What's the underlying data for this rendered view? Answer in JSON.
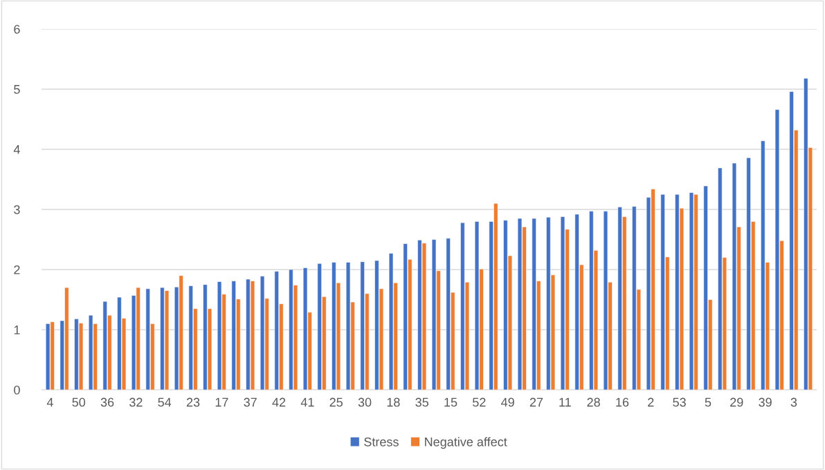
{
  "chart_data": {
    "type": "bar",
    "categories": [
      "4",
      null,
      "50",
      null,
      "36",
      null,
      "32",
      null,
      "54",
      null,
      "23",
      null,
      "17",
      null,
      "37",
      null,
      "42",
      null,
      "41",
      null,
      "25",
      null,
      "30",
      null,
      "18",
      null,
      "35",
      null,
      "15",
      null,
      "52",
      null,
      "49",
      null,
      "27",
      null,
      "11",
      null,
      "28",
      null,
      "16",
      null,
      "2",
      null,
      "53",
      null,
      "5",
      null,
      "29",
      null,
      "39",
      null,
      "3",
      null
    ],
    "series": [
      {
        "name": "Stress",
        "color": "#4472c4",
        "values": [
          1.1,
          1.15,
          1.18,
          1.24,
          1.47,
          1.54,
          1.57,
          1.68,
          1.7,
          1.71,
          1.73,
          1.75,
          1.8,
          1.81,
          1.84,
          1.89,
          1.97,
          2.0,
          2.03,
          2.1,
          2.12,
          2.12,
          2.13,
          2.15,
          2.27,
          2.43,
          2.49,
          2.5,
          2.52,
          2.78,
          2.8,
          2.8,
          2.82,
          2.85,
          2.85,
          2.87,
          2.88,
          2.92,
          2.97,
          2.97,
          3.04,
          3.05,
          3.2,
          3.25,
          3.25,
          3.28,
          3.39,
          3.69,
          3.77,
          3.86,
          4.14,
          4.66,
          4.96,
          5.18
        ]
      },
      {
        "name": "Negative affect",
        "color": "#ed7d31",
        "values": [
          1.13,
          1.7,
          1.11,
          1.1,
          1.24,
          1.19,
          1.7,
          1.1,
          1.65,
          1.9,
          1.35,
          1.35,
          1.59,
          1.51,
          1.81,
          1.52,
          1.43,
          1.74,
          1.29,
          1.55,
          1.78,
          1.46,
          1.6,
          1.68,
          1.78,
          2.17,
          2.44,
          1.98,
          1.62,
          1.79,
          2.01,
          3.1,
          2.23,
          2.71,
          1.81,
          1.91,
          2.67,
          2.08,
          2.32,
          1.79,
          2.88,
          1.67,
          3.34,
          2.21,
          3.02,
          3.25,
          1.5,
          2.2,
          2.71,
          2.8,
          2.12,
          2.48,
          4.32,
          4.03
        ]
      }
    ],
    "ylim": [
      0,
      6
    ],
    "yticks": [
      0,
      1,
      2,
      3,
      4,
      5,
      6
    ],
    "grid": "y",
    "legend": "bottom"
  }
}
